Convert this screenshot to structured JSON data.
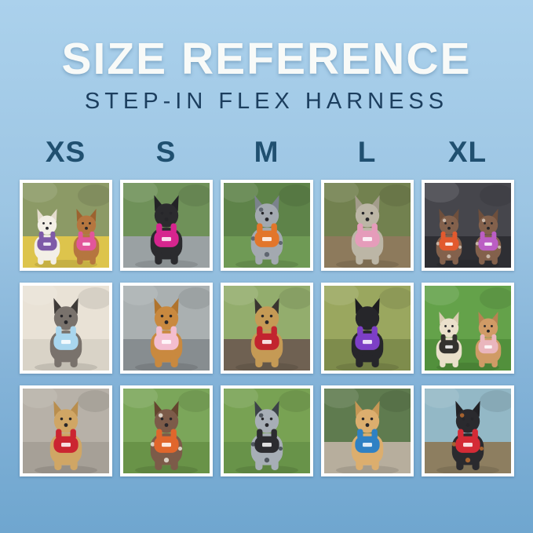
{
  "header": {
    "title": "SIZE REFERENCE",
    "subtitle": "STEP-IN FLEX HARNESS"
  },
  "palette": {
    "background_top": "#abd1ec",
    "background_bottom": "#6fa6cf",
    "title_color": "#f8faf8",
    "subtitle_color": "#1c3e5e",
    "size_label_color": "#205070",
    "photo_frame_color": "#ffffff"
  },
  "sizes": [
    "XS",
    "S",
    "M",
    "L",
    "XL"
  ],
  "photos": {
    "rows": [
      [
        {
          "column_size": "XS",
          "desc": "Fluffy white dog in purple harness and apricot poodle in pink harness on a yellow picnic blanket",
          "scene": {
            "backdrop": "#8c9a66",
            "ground": "#ddc44c"
          },
          "dogs": [
            {
              "coat": "#f3efe6",
              "ear": "#e4dccd",
              "harness": "#7e5aa8"
            },
            {
              "coat": "#b5763f",
              "ear": "#9c622f",
              "harness": "#e2569b"
            }
          ]
        },
        {
          "column_size": "S",
          "desc": "Black Chihuahua mix in hot-pink harness standing on a rock with greenery behind",
          "scene": {
            "backdrop": "#6f9159",
            "ground": "#9aa1a3"
          },
          "dogs": [
            {
              "coat": "#2b2b2e",
              "ear": "#232326",
              "harness": "#d6258e"
            }
          ]
        },
        {
          "column_size": "M",
          "desc": "Blue-merle puppy in orange harness with orange leash on green grass",
          "scene": {
            "backdrop": "#5e8349",
            "ground": "#6f9a55"
          },
          "dogs": [
            {
              "coat": "#a3a9b0",
              "ear": "#7b828c",
              "spots": "#5f6670",
              "harness": "#e2762b"
            }
          ]
        },
        {
          "column_size": "L",
          "desc": "Brindle whippet in pink harness sitting on dirt path in a park",
          "scene": {
            "backdrop": "#72814f",
            "ground": "#8d7a5c"
          },
          "dogs": [
            {
              "coat": "#bcb6a6",
              "ear": "#a39c8b",
              "harness": "#e59cba"
            }
          ]
        },
        {
          "column_size": "XL",
          "desc": "Two German shorthaired pointers in orange and orchid harnesses inside a car",
          "scene": {
            "backdrop": "#46464c",
            "ground": "#2e2e33"
          },
          "dogs": [
            {
              "coat": "#83614c",
              "ear": "#6e4f3c",
              "spots": "#c7b6a8",
              "harness": "#e25a2e"
            },
            {
              "coat": "#83614c",
              "ear": "#6e4f3c",
              "spots": "#c7b6a8",
              "harness": "#bb5ec4"
            }
          ]
        }
      ],
      [
        {
          "column_size": "XS",
          "desc": "Gray-and-black shih tzu in light-blue harness lounging on a white bed",
          "scene": {
            "backdrop": "#e9e2d6",
            "ground": "#d9d3c7"
          },
          "dogs": [
            {
              "coat": "#79726c",
              "ear": "#3f3b38",
              "harness": "#a9d6ee"
            }
          ]
        },
        {
          "column_size": "S",
          "desc": "Golden retriever puppy in blush-pink harness sitting on gray pavement",
          "scene": {
            "backdrop": "#aab0b1",
            "ground": "#878d90"
          },
          "dogs": [
            {
              "coat": "#c9893f",
              "ear": "#b0742e",
              "harness": "#f3bed0"
            }
          ]
        },
        {
          "column_size": "M",
          "desc": "Tan-and-black terrier mix in red harness beside a park bench",
          "scene": {
            "backdrop": "#93ad6d",
            "ground": "#6f6152"
          },
          "dogs": [
            {
              "coat": "#c59a55",
              "ear": "#3a3530",
              "harness": "#c2242f"
            }
          ]
        },
        {
          "column_size": "L",
          "desc": "Black Lab puppy in purple harness on grass scattered with autumn leaves",
          "scene": {
            "backdrop": "#9aa75f",
            "ground": "#7e8c4c"
          },
          "dogs": [
            {
              "coat": "#26262a",
              "ear": "#1d1d20",
              "harness": "#7d3fc6"
            }
          ]
        },
        {
          "column_size": "XL",
          "desc": "Cream doodle in dark harness and fawn French bulldog in pink harness on a lawn",
          "scene": {
            "backdrop": "#64a24a",
            "ground": "#52903c"
          },
          "dogs": [
            {
              "coat": "#eae0cb",
              "ear": "#d8cbb0",
              "harness": "#34322f"
            },
            {
              "coat": "#d09b66",
              "ear": "#b88252",
              "harness": "#eab6bd"
            }
          ]
        }
      ],
      [
        {
          "column_size": "XS",
          "desc": "Tan yorkie mix in red harness sitting on a gray rug",
          "scene": {
            "backdrop": "#b7b1a8",
            "ground": "#a6a097"
          },
          "dogs": [
            {
              "coat": "#d0a665",
              "ear": "#b98e4e",
              "harness": "#cb2531"
            }
          ]
        },
        {
          "column_size": "S",
          "desc": "Liver-ticked pointer puppy in orange harness with orange leash lying in grass",
          "scene": {
            "backdrop": "#7ba65a",
            "ground": "#699348"
          },
          "dogs": [
            {
              "coat": "#7c5b49",
              "ear": "#64462f",
              "spots": "#d8cfc2",
              "harness": "#e0662c"
            }
          ]
        },
        {
          "column_size": "M",
          "desc": "Black-and-white merle border collie in black harness on green grass",
          "scene": {
            "backdrop": "#78a253",
            "ground": "#689349"
          },
          "dogs": [
            {
              "coat": "#a7aeb6",
              "ear": "#3c4248",
              "spots": "#4f565e",
              "harness": "#2c2c30"
            }
          ]
        },
        {
          "column_size": "L",
          "desc": "Apricot doodle in bright blue harness with blue leash sitting on a boulder",
          "scene": {
            "backdrop": "#5f7b4f",
            "ground": "#b7ae9d"
          },
          "dogs": [
            {
              "coat": "#dcae6e",
              "ear": "#c69755",
              "harness": "#2f81c4"
            }
          ]
        },
        {
          "column_size": "XL",
          "desc": "Black-and-tan pup in red harness with red leash on a rocky mountain overlook",
          "scene": {
            "backdrop": "#93b8c6",
            "ground": "#8d7e60"
          },
          "dogs": [
            {
              "coat": "#2a2a2e",
              "ear": "#222226",
              "spots": "#a5622f",
              "harness": "#d42b36"
            }
          ]
        }
      ]
    ]
  }
}
